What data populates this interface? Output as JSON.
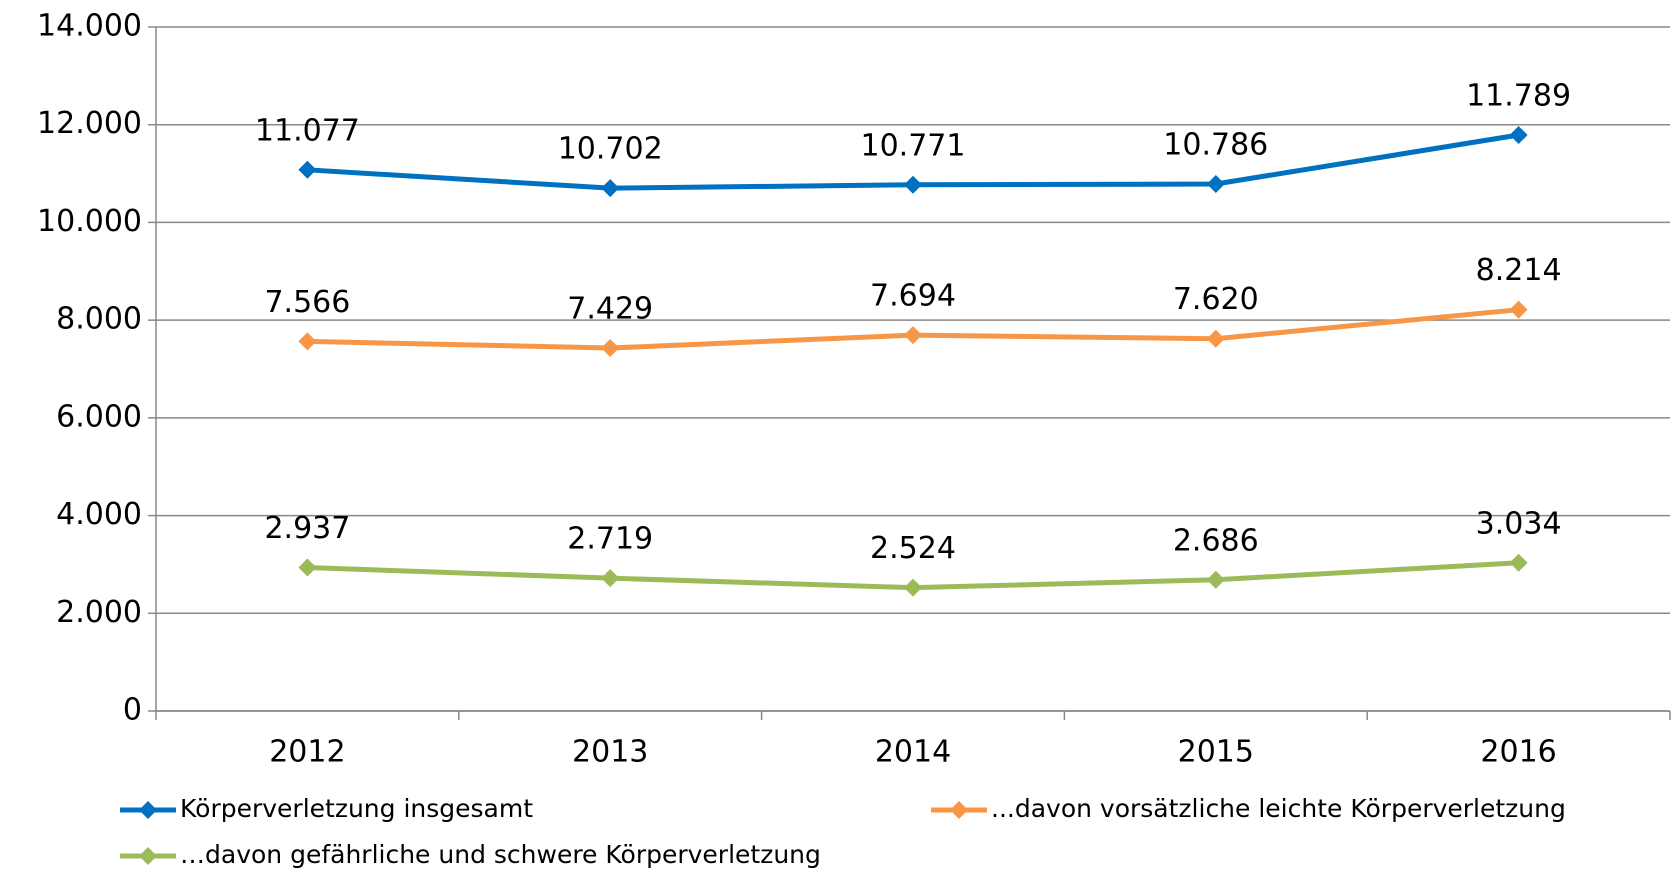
{
  "chart_data": {
    "type": "line",
    "categories": [
      "2012",
      "2013",
      "2014",
      "2015",
      "2016"
    ],
    "series": [
      {
        "name": "Körperverletzung insgesamt",
        "color": "#0070c0",
        "values": [
          11077,
          10702,
          10771,
          10786,
          11789
        ],
        "value_labels": [
          "11.077",
          "10.702",
          "10.771",
          "10.786",
          "11.789"
        ]
      },
      {
        "name": "...davon vorsätzliche leichte Körperverletzung",
        "color": "#f79646",
        "values": [
          7566,
          7429,
          7694,
          7620,
          8214
        ],
        "value_labels": [
          "7.566",
          "7.429",
          "7.694",
          "7.620",
          "8.214"
        ]
      },
      {
        "name": "…davon gefährliche und schwere Körperverletzung",
        "color": "#9bbb59",
        "values": [
          2937,
          2719,
          2524,
          2686,
          3034
        ],
        "value_labels": [
          "2.937",
          "2.719",
          "2.524",
          "2.686",
          "3.034"
        ]
      }
    ],
    "ylim": [
      0,
      14000
    ],
    "yticks": [
      0,
      {
        "value": 2000,
        "label": "2.000"
      },
      {
        "value": 4000,
        "label": "4.000"
      },
      {
        "value": 6000,
        "label": "6.000"
      },
      {
        "value": 8000,
        "label": "8.000"
      },
      {
        "value": 10000,
        "label": "10.000"
      },
      {
        "value": 12000,
        "label": "12.000"
      },
      {
        "value": 14000,
        "label": "14.000"
      }
    ],
    "grid": true
  }
}
